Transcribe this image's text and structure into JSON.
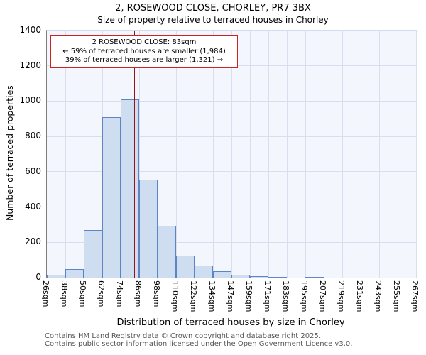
{
  "chart_data": {
    "type": "bar",
    "title": "2, ROSEWOOD CLOSE, CHORLEY, PR7 3BX",
    "subtitle": "Size of property relative to terraced houses in Chorley",
    "xlabel": "Distribution of terraced houses by size in Chorley",
    "ylabel": "Number of terraced properties",
    "ylim": [
      0,
      1400
    ],
    "y_ticks": [
      0,
      200,
      400,
      600,
      800,
      1000,
      1200,
      1400
    ],
    "x_tick_labels": [
      "26sqm",
      "38sqm",
      "50sqm",
      "62sqm",
      "74sqm",
      "86sqm",
      "98sqm",
      "110sqm",
      "122sqm",
      "134sqm",
      "147sqm",
      "159sqm",
      "171sqm",
      "183sqm",
      "195sqm",
      "207sqm",
      "219sqm",
      "231sqm",
      "243sqm",
      "255sqm",
      "267sqm"
    ],
    "bin_edges_sqm": [
      26,
      38,
      50,
      62,
      74,
      86,
      98,
      110,
      122,
      134,
      147,
      159,
      171,
      183,
      195,
      207,
      219,
      231,
      243,
      255,
      267
    ],
    "values": [
      15,
      50,
      270,
      910,
      1010,
      555,
      295,
      125,
      70,
      35,
      15,
      10,
      5,
      0,
      5,
      0,
      0,
      0,
      0,
      0
    ],
    "grid": true,
    "legend": null,
    "marker": {
      "value_sqm": 83
    },
    "annotation": {
      "line1": "2 ROSEWOOD CLOSE: 83sqm",
      "line2": "← 59% of terraced houses are smaller (1,984)",
      "line3": "39% of terraced houses are larger (1,321) →"
    },
    "colors": {
      "bar_fill": "#cfddf1",
      "bar_border": "#5c85c7",
      "grid": "#d8deee",
      "plot_bg": "#f3f6fc",
      "marker_line": "#991111",
      "annotation_border": "#cc2222"
    }
  },
  "footer": {
    "line1": "Contains HM Land Registry data © Crown copyright and database right 2025.",
    "line2": "Contains public sector information licensed under the Open Government Licence v3.0."
  }
}
